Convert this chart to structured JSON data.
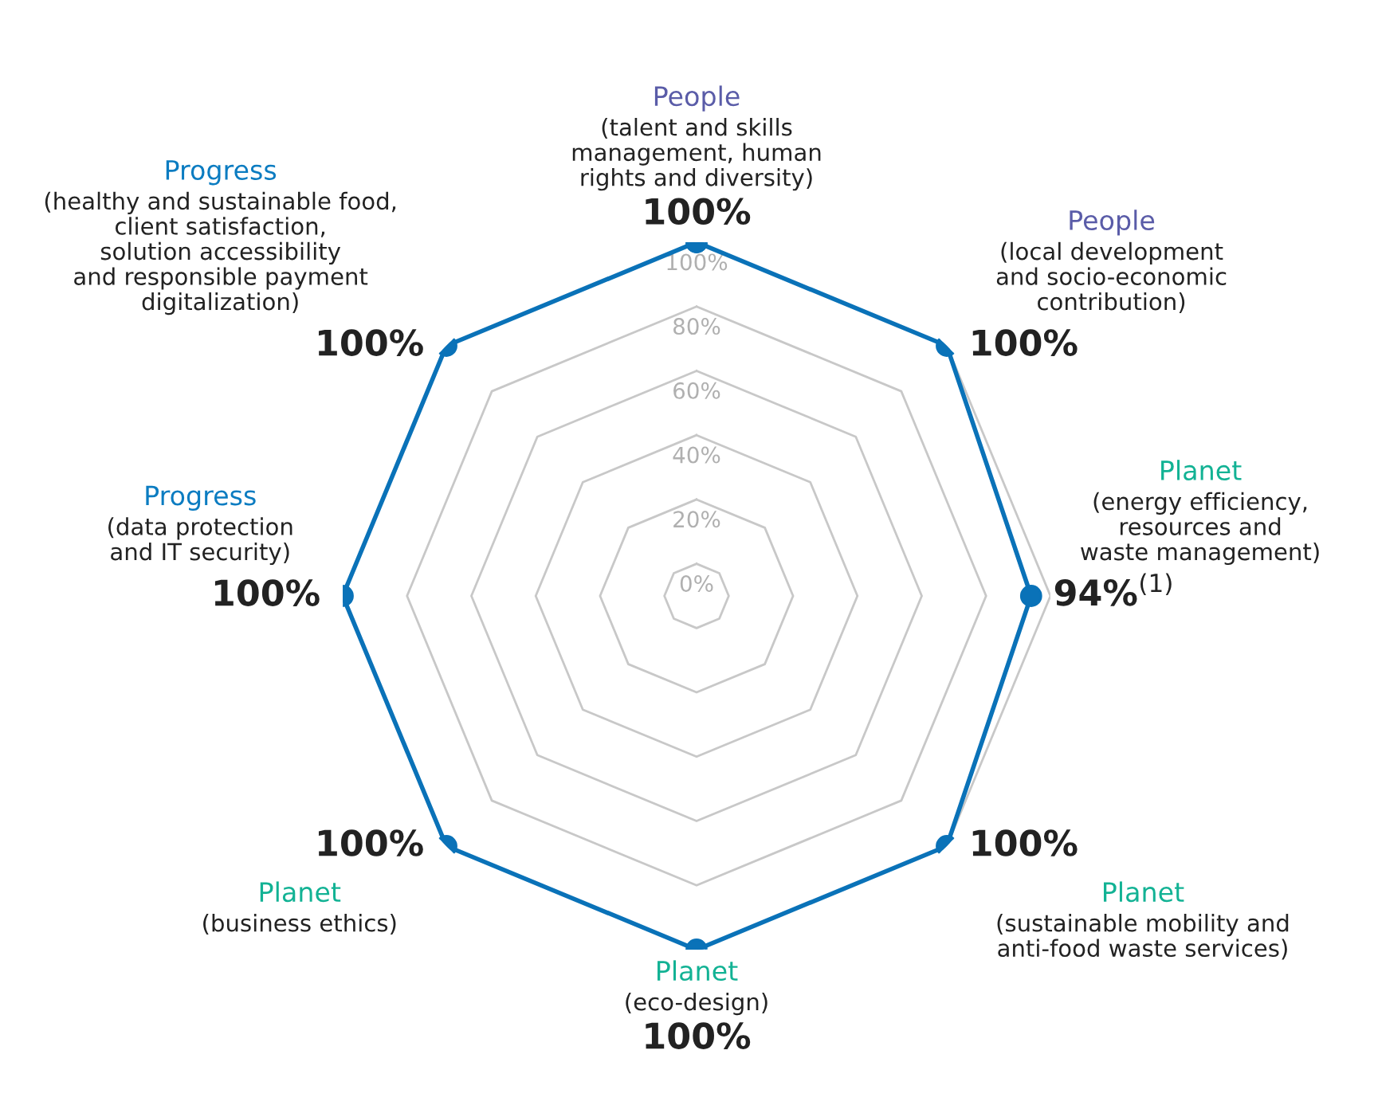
{
  "chart_data": {
    "type": "radar",
    "categories": [
      "People\n(talent and skills\nmanagement, human\nrights and diversity)",
      "People\n(local development\nand socio-economic\ncontribution)",
      "Planet\n(energy efficiency,\nresources and\nwaste management)",
      "Planet\n(sustainable mobility and\nanti-food waste services)",
      "Planet\n(eco-design)",
      "Planet\n(business ethics)",
      "Progress\n(data protection\nand IT security)",
      "Progress\n(healthy and sustainable food,\nclient satisfaction,\nsolution accessibility\nand responsible payment\ndigitalization)"
    ],
    "colors": [
      "#5a5ca8",
      "#5a5ca8",
      "#12b294",
      "#12b294",
      "#12b294",
      "#12b294",
      "#0b7cc1",
      "#0b7cc1"
    ],
    "series": [
      {
        "color": "#0a72b8",
        "values": [
          100,
          100,
          94,
          100,
          100,
          100,
          100,
          100
        ],
        "value_labels": [
          "100%",
          "100%",
          "94%$^{(1)}$",
          "100%",
          "100%",
          "100%",
          "100%",
          "100%"
        ]
      }
    ],
    "ylim": [
      -10,
      100
    ],
    "yticks": [
      {
        "value": 0,
        "label": "0%"
      },
      {
        "value": 20,
        "label": "20%"
      },
      {
        "value": 40,
        "label": "40%"
      },
      {
        "value": 60,
        "label": "60%"
      },
      {
        "value": 80,
        "label": "80%"
      },
      {
        "value": 100,
        "label": "100%"
      }
    ],
    "grid": true,
    "marker": "circle",
    "line_style": "solid"
  }
}
